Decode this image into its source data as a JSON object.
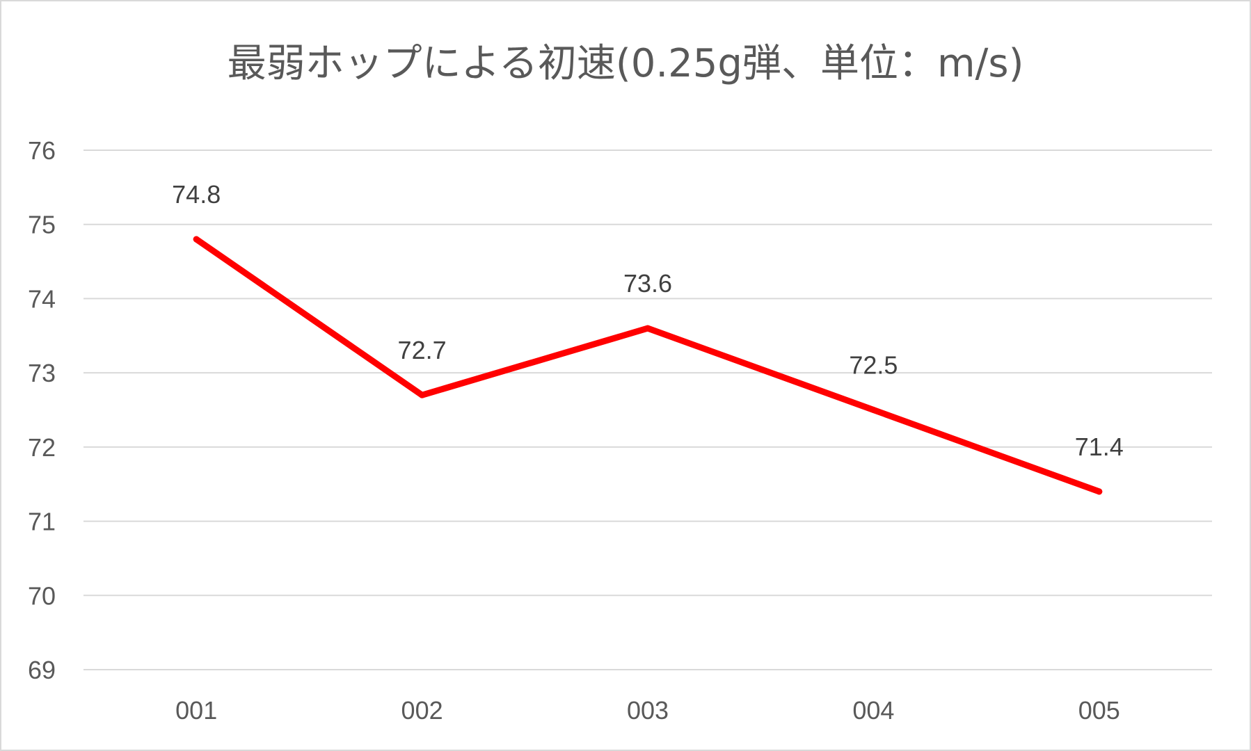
{
  "chart_data": {
    "type": "line",
    "title": "最弱ホップによる初速(0.25g弾、単位：m/s)",
    "categories": [
      "001",
      "002",
      "003",
      "004",
      "005"
    ],
    "series": [
      {
        "values": [
          74.8,
          72.7,
          73.6,
          72.5,
          71.4
        ],
        "color": "#ff0000"
      }
    ],
    "data_labels": [
      "74.8",
      "72.7",
      "73.6",
      "72.5",
      "71.4"
    ],
    "yticks": [
      "69",
      "70",
      "71",
      "72",
      "73",
      "74",
      "75",
      "76"
    ],
    "ylim": [
      69,
      76
    ],
    "grid": true,
    "legend": false,
    "gridline_color": "#d9d9d9",
    "axis_text_color": "#595959"
  }
}
